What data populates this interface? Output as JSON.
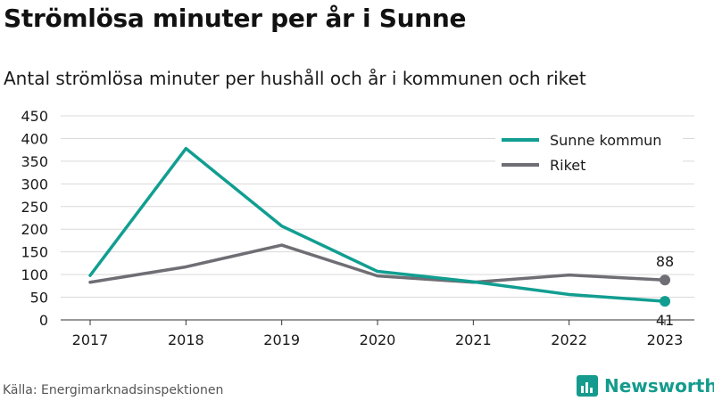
{
  "header": {
    "title": "Strömlösa minuter per år i Sunne",
    "subtitle": "Antal strömlösa minuter per hushåll och år i kommunen och riket"
  },
  "footer": {
    "source": "Källa: Energimarknadsinspektionen",
    "brand": "Newsworthy"
  },
  "colors": {
    "sunne": "#119e91",
    "riket": "#6e6e74",
    "grid": "#d9d9d9",
    "brand": "#149b8d"
  },
  "chart_data": {
    "type": "line",
    "categories": [
      "2017",
      "2018",
      "2019",
      "2020",
      "2021",
      "2022",
      "2023"
    ],
    "series": [
      {
        "name": "Sunne kommun",
        "values": [
          98,
          378,
          207,
          107,
          84,
          56,
          41
        ],
        "color": "#119e91"
      },
      {
        "name": "Riket",
        "values": [
          83,
          117,
          165,
          97,
          83,
          99,
          88
        ],
        "color": "#6e6e74"
      }
    ],
    "ylim": [
      0,
      450
    ],
    "yticks": [
      0,
      50,
      100,
      150,
      200,
      250,
      300,
      350,
      400,
      450
    ],
    "end_labels": [
      "41",
      "88"
    ],
    "legend_position": "top-right",
    "grid": true
  }
}
